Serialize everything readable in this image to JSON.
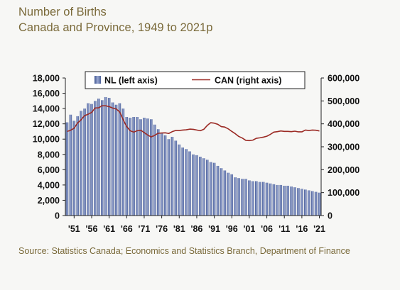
{
  "title_line1": "Number of Births",
  "title_line2": "Canada and Province, 1949 to 2021p",
  "source": "Source:  Statistics Canada; Economics and Statistics Branch, Department of Finance",
  "chart_data": {
    "type": "bar",
    "secondary_type": "line",
    "title": "Number of Births",
    "subtitle": "Canada and Province, 1949 to 2021p",
    "legend_placement": "top",
    "grid": false,
    "x_tick_labels": [
      "'51",
      "'56",
      "'61",
      "'66",
      "'71",
      "'76",
      "'81",
      "'86",
      "'91",
      "'96",
      "'01",
      "'06",
      "'11",
      "'16",
      "'21"
    ],
    "left_axis": {
      "ylim": [
        0,
        18000
      ],
      "ticks": [
        "0",
        "2,000",
        "4,000",
        "6,000",
        "8,000",
        "10,000",
        "12,000",
        "14,000",
        "16,000",
        "18,000"
      ]
    },
    "right_axis": {
      "ylim": [
        0,
        600000
      ],
      "ticks": [
        "0",
        "100,000",
        "200,000",
        "300,000",
        "400,000",
        "500,000",
        "600,000"
      ]
    },
    "x": [
      1949,
      1950,
      1951,
      1952,
      1953,
      1954,
      1955,
      1956,
      1957,
      1958,
      1959,
      1960,
      1961,
      1962,
      1963,
      1964,
      1965,
      1966,
      1967,
      1968,
      1969,
      1970,
      1971,
      1972,
      1973,
      1974,
      1975,
      1976,
      1977,
      1978,
      1979,
      1980,
      1981,
      1982,
      1983,
      1984,
      1985,
      1986,
      1987,
      1988,
      1989,
      1990,
      1991,
      1992,
      1993,
      1994,
      1995,
      1996,
      1997,
      1998,
      1999,
      2000,
      2001,
      2002,
      2003,
      2004,
      2005,
      2006,
      2007,
      2008,
      2009,
      2010,
      2011,
      2012,
      2013,
      2014,
      2015,
      2016,
      2017,
      2018,
      2019,
      2020,
      2021
    ],
    "series": [
      {
        "name": "NL (left axis)",
        "axis": "left",
        "color": "#5b6fa8",
        "values": [
          12200,
          13200,
          12400,
          13000,
          13700,
          14000,
          14700,
          14600,
          15000,
          15300,
          15100,
          15500,
          15400,
          14800,
          14500,
          14700,
          14000,
          12900,
          12800,
          12900,
          12900,
          12600,
          12800,
          12700,
          12600,
          11900,
          11300,
          10800,
          10500,
          10000,
          10300,
          9800,
          9300,
          8900,
          8700,
          8400,
          8000,
          7900,
          7700,
          7500,
          7300,
          7000,
          6900,
          6500,
          6200,
          5900,
          5600,
          5400,
          5000,
          4900,
          4800,
          4800,
          4600,
          4500,
          4500,
          4400,
          4400,
          4300,
          4200,
          4100,
          4000,
          4000,
          3900,
          3900,
          3800,
          3700,
          3600,
          3500,
          3400,
          3300,
          3200,
          3100,
          3000
        ]
      },
      {
        "name": "CAN (right axis)",
        "axis": "right",
        "color": "#9b2a24",
        "values": [
          367000,
          372000,
          381000,
          404000,
          418000,
          436000,
          442000,
          450000,
          469000,
          470000,
          479000,
          479000,
          475000,
          469000,
          465000,
          452000,
          418000,
          388000,
          370000,
          364000,
          370000,
          372000,
          362000,
          351000,
          343000,
          350000,
          359000,
          360000,
          361000,
          358000,
          366000,
          371000,
          371000,
          373000,
          374000,
          377000,
          376000,
          373000,
          370000,
          376000,
          393000,
          405000,
          403000,
          398000,
          388000,
          386000,
          378000,
          367000,
          357000,
          345000,
          338000,
          328000,
          327000,
          329000,
          337000,
          339000,
          342000,
          346000,
          354000,
          364000,
          366000,
          369000,
          367000,
          367000,
          366000,
          368000,
          365000,
          365000,
          373000,
          371000,
          373000,
          372000,
          369000
        ]
      }
    ]
  }
}
